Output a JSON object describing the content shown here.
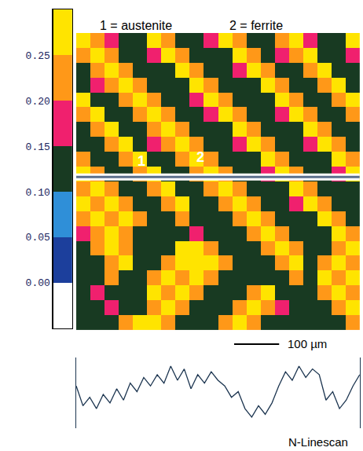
{
  "chart_data": [
    {
      "type": "heatmap",
      "xlim": [
        0,
        630
      ],
      "ylim": [
        660,
        0
      ],
      "tick_labels": false,
      "cells": [
        [
          0.27,
          0.22,
          0.17,
          0.12,
          0.12,
          0.27,
          0.22,
          0.12,
          0.12,
          0.17,
          0.27,
          0.22,
          0.12,
          0.12,
          0.22,
          0.27,
          0.17,
          0.12,
          0.12,
          0.27
        ],
        [
          0.22,
          0.27,
          0.22,
          0.12,
          0.12,
          0.17,
          0.27,
          0.22,
          0.12,
          0.12,
          0.12,
          0.27,
          0.22,
          0.12,
          0.17,
          0.22,
          0.27,
          0.12,
          0.12,
          0.17
        ],
        [
          0.12,
          0.22,
          0.27,
          0.22,
          0.12,
          0.12,
          0.12,
          0.27,
          0.22,
          0.12,
          0.12,
          0.17,
          0.27,
          0.22,
          0.12,
          0.12,
          0.22,
          0.27,
          0.12,
          0.12
        ],
        [
          0.12,
          0.17,
          0.22,
          0.27,
          0.22,
          0.12,
          0.12,
          0.12,
          0.27,
          0.22,
          0.12,
          0.12,
          0.12,
          0.27,
          0.22,
          0.12,
          0.12,
          0.22,
          0.27,
          0.12
        ],
        [
          0.27,
          0.12,
          0.12,
          0.22,
          0.27,
          0.22,
          0.12,
          0.12,
          0.17,
          0.27,
          0.22,
          0.12,
          0.12,
          0.12,
          0.27,
          0.22,
          0.12,
          0.12,
          0.22,
          0.27
        ],
        [
          0.22,
          0.27,
          0.12,
          0.12,
          0.22,
          0.27,
          0.22,
          0.12,
          0.12,
          0.17,
          0.27,
          0.22,
          0.12,
          0.12,
          0.17,
          0.27,
          0.22,
          0.12,
          0.12,
          0.22
        ],
        [
          0.12,
          0.22,
          0.27,
          0.12,
          0.12,
          0.22,
          0.27,
          0.22,
          0.12,
          0.12,
          0.12,
          0.27,
          0.22,
          0.12,
          0.12,
          0.12,
          0.27,
          0.22,
          0.12,
          0.12
        ],
        [
          0.12,
          0.12,
          0.22,
          0.27,
          0.12,
          0.17,
          0.22,
          0.27,
          0.22,
          0.12,
          0.12,
          0.17,
          0.27,
          0.22,
          0.12,
          0.12,
          0.17,
          0.27,
          0.22,
          0.12
        ],
        [
          0.22,
          0.12,
          0.12,
          0.22,
          0.27,
          0.12,
          0.12,
          0.22,
          0.27,
          0.22,
          0.12,
          0.12,
          0.12,
          0.27,
          0.22,
          0.12,
          0.12,
          0.12,
          0.27,
          0.22
        ],
        [
          0.27,
          0.22,
          0.12,
          0.12,
          0.22,
          0.27,
          0.12,
          0.12,
          0.22,
          0.27,
          0.22,
          0.12,
          0.12,
          0.17,
          0.27,
          0.22,
          0.12,
          0.12,
          0.17,
          0.27
        ],
        [
          0.22,
          0.27,
          0.22,
          0.12,
          0.12,
          0.22,
          0.27,
          0.12,
          0.12,
          0.22,
          0.27,
          0.22,
          0.12,
          0.12,
          0.12,
          0.27,
          0.22,
          0.12,
          0.12,
          0.12
        ],
        [
          0.27,
          0.22,
          0.27,
          0.22,
          0.12,
          0.12,
          0.22,
          0.27,
          0.12,
          0.12,
          0.22,
          0.27,
          0.22,
          0.12,
          0.12,
          0.17,
          0.27,
          0.22,
          0.12,
          0.12
        ],
        [
          0.22,
          0.27,
          0.22,
          0.27,
          0.22,
          0.12,
          0.12,
          0.22,
          0.12,
          0.12,
          0.12,
          0.22,
          0.27,
          0.22,
          0.12,
          0.12,
          0.12,
          0.27,
          0.22,
          0.12
        ],
        [
          0.17,
          0.22,
          0.27,
          0.22,
          0.12,
          0.12,
          0.12,
          0.12,
          0.17,
          0.12,
          0.12,
          0.12,
          0.22,
          0.27,
          0.22,
          0.12,
          0.12,
          0.12,
          0.27,
          0.22
        ],
        [
          0.12,
          0.22,
          0.27,
          0.22,
          0.12,
          0.12,
          0.12,
          0.27,
          0.27,
          0.22,
          0.12,
          0.12,
          0.12,
          0.22,
          0.27,
          0.22,
          0.12,
          0.12,
          0.22,
          0.27
        ],
        [
          0.12,
          0.12,
          0.22,
          0.27,
          0.12,
          0.12,
          0.22,
          0.27,
          0.27,
          0.27,
          0.22,
          0.12,
          0.12,
          0.12,
          0.22,
          0.27,
          0.12,
          0.22,
          0.27,
          0.22
        ],
        [
          0.12,
          0.12,
          0.22,
          0.12,
          0.12,
          0.22,
          0.27,
          0.22,
          0.27,
          0.22,
          0.12,
          0.12,
          0.12,
          0.12,
          0.12,
          0.22,
          0.12,
          0.27,
          0.22,
          0.27
        ],
        [
          0.12,
          0.17,
          0.12,
          0.12,
          0.12,
          0.27,
          0.22,
          0.27,
          0.22,
          0.12,
          0.12,
          0.12,
          0.22,
          0.27,
          0.12,
          0.12,
          0.12,
          0.22,
          0.27,
          0.22
        ],
        [
          0.12,
          0.12,
          0.17,
          0.12,
          0.12,
          0.22,
          0.27,
          0.22,
          0.12,
          0.12,
          0.12,
          0.22,
          0.27,
          0.22,
          0.17,
          0.12,
          0.12,
          0.12,
          0.22,
          0.27
        ],
        [
          0.12,
          0.12,
          0.12,
          0.22,
          0.27,
          0.27,
          0.22,
          0.12,
          0.12,
          0.12,
          0.22,
          0.27,
          0.22,
          0.12,
          0.12,
          0.12,
          0.12,
          0.12,
          0.12,
          0.22
        ]
      ],
      "colorbar": {
        "range": [
          -0.05,
          0.3
        ],
        "ticks": [
          {
            "value": 0,
            "label": "0.00"
          },
          0.05,
          {
            "value": 0.1,
            "label": "0.10"
          },
          0.15,
          {
            "value": 0.2,
            "label": "0.20"
          },
          0.25
        ],
        "colors": [
          "#ffffff",
          "#1c3f9c",
          "#2f8fd8",
          "#183a22",
          "#f0206e",
          "#ff9818",
          "#ffe400"
        ]
      },
      "phase_labels": [
        "1 = austenite",
        "2 = ferrite"
      ],
      "annotations": [
        {
          "text": "1",
          "x": 145,
          "y": 285
        },
        {
          "text": "2",
          "x": 276,
          "y": 276
        }
      ],
      "linescan_y": 320,
      "scale_bar": {
        "length": 100,
        "label": "100 µm"
      }
    },
    {
      "type": "line",
      "title": "N-Linescan",
      "tick_labels": false,
      "color": "#1c3550",
      "xlim": [
        0,
        630
      ],
      "ylim": [
        0.05,
        0.3
      ],
      "x": [
        0,
        15,
        30,
        45,
        60,
        75,
        90,
        105,
        120,
        135,
        150,
        165,
        180,
        195,
        210,
        225,
        240,
        255,
        270,
        285,
        300,
        315,
        330,
        345,
        360,
        375,
        390,
        405,
        420,
        435,
        450,
        465,
        480,
        495,
        510,
        525,
        540,
        555,
        570,
        585,
        600,
        615,
        630
      ],
      "values": [
        0.2,
        0.13,
        0.16,
        0.12,
        0.17,
        0.14,
        0.19,
        0.15,
        0.21,
        0.18,
        0.23,
        0.2,
        0.24,
        0.21,
        0.27,
        0.22,
        0.26,
        0.19,
        0.24,
        0.21,
        0.25,
        0.22,
        0.2,
        0.16,
        0.18,
        0.12,
        0.09,
        0.13,
        0.1,
        0.14,
        0.2,
        0.25,
        0.22,
        0.27,
        0.23,
        0.26,
        0.24,
        0.15,
        0.18,
        0.12,
        0.15,
        0.2,
        0.24
      ]
    }
  ]
}
